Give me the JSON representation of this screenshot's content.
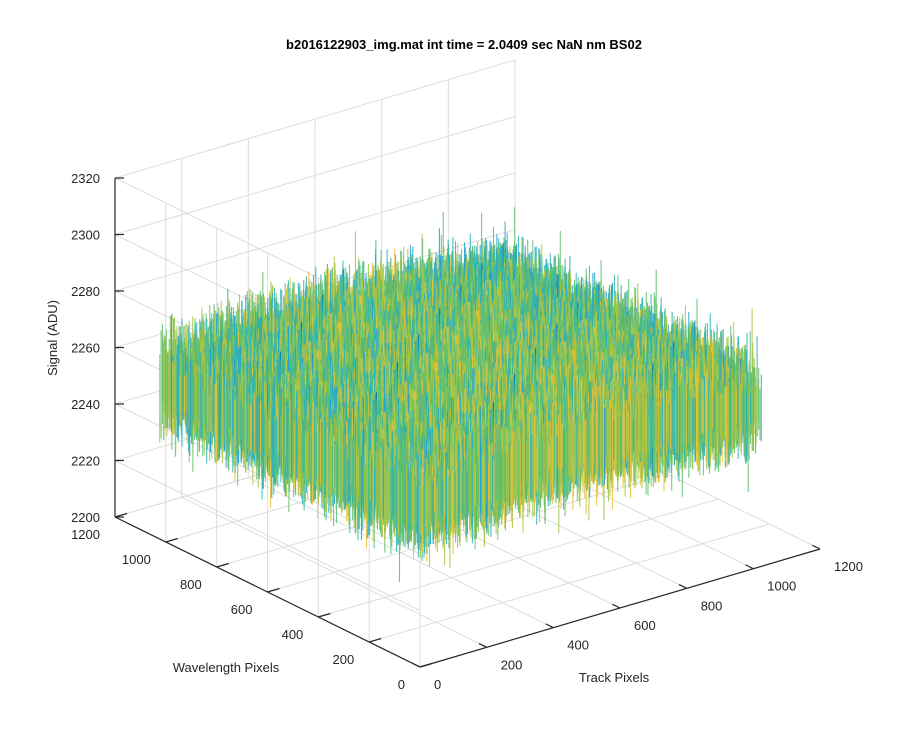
{
  "chart_data": {
    "type": "surface",
    "title": "b2016122903_img.mat int time = 2.0409 sec  NaN nm BS02",
    "xlabel": "Track Pixels",
    "ylabel": "Wavelength Pixels",
    "zlabel": "Signal (ADU)",
    "xlim": [
      0,
      1200
    ],
    "ylim": [
      0,
      1200
    ],
    "zlim": [
      2200,
      2320
    ],
    "x_ticks": [
      "0",
      "200",
      "400",
      "600",
      "800",
      "1000",
      "1200"
    ],
    "y_ticks": [
      "0",
      "200",
      "400",
      "600",
      "800",
      "1000",
      "1200"
    ],
    "z_ticks": [
      "2200",
      "2220",
      "2240",
      "2260",
      "2280",
      "2300",
      "2320"
    ],
    "surface_extent": {
      "x": [
        0,
        1024
      ],
      "y": [
        0,
        1024
      ]
    },
    "surface_level_range": [
      2225,
      2275
    ],
    "surface_mean": 2255,
    "colormap": [
      "#0072bd",
      "#1b9fd6",
      "#2bb2b8",
      "#5cc06f",
      "#a8c545",
      "#e8c23a"
    ],
    "grid": true
  }
}
